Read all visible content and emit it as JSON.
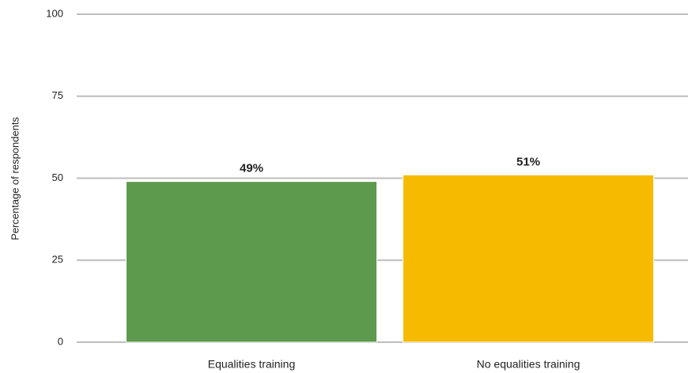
{
  "chart_data": {
    "type": "bar",
    "y_label": "Percentage of respondents",
    "categories": [
      "Equalities training",
      "No equalities training"
    ],
    "values": [
      49,
      51
    ],
    "value_labels": [
      "49%",
      "51%"
    ],
    "colors": [
      "#5e9a4d",
      "#f6bb00"
    ],
    "ylim": [
      0,
      100
    ],
    "yticks": [
      0,
      25,
      50,
      75,
      100
    ],
    "grid": true
  }
}
